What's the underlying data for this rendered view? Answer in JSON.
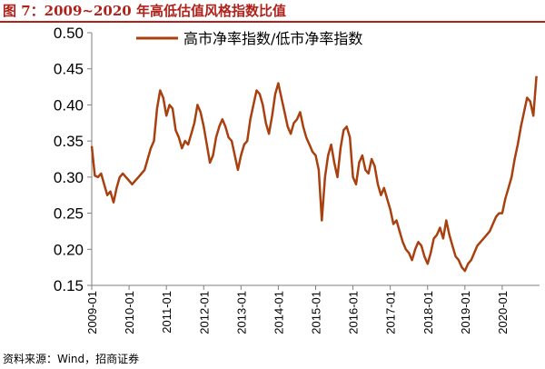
{
  "figure": {
    "title": "图 7：2009~2020 年高低估值风格指数比值",
    "source": "资料来源：Wind，招商证券"
  },
  "colors": {
    "series": "#a8400f",
    "title": "#b0211a",
    "axis": "#7f7f7f",
    "text": "#000000"
  },
  "chart_data": {
    "type": "line",
    "title": "图 7：2009~2020 年高低估值风格指数比值",
    "xlabel": "",
    "ylabel": "",
    "ylim": [
      0.15,
      0.5
    ],
    "yticks": [
      "0.15",
      "0.20",
      "0.25",
      "0.30",
      "0.35",
      "0.40",
      "0.45",
      "0.50"
    ],
    "xlim": [
      "2009-01",
      "2020-12"
    ],
    "xticks": [
      "2009-01",
      "2010-01",
      "2011-01",
      "2012-01",
      "2013-01",
      "2014-01",
      "2015-01",
      "2016-01",
      "2017-01",
      "2018-01",
      "2019-01",
      "2020-01"
    ],
    "grid": false,
    "legend": "top-center",
    "series": [
      {
        "name": "高市净率指数/低市净率指数",
        "x": [
          "2009-01",
          "2009-02",
          "2009-03",
          "2009-04",
          "2009-05",
          "2009-06",
          "2009-07",
          "2009-08",
          "2009-09",
          "2009-10",
          "2009-11",
          "2009-12",
          "2010-01",
          "2010-02",
          "2010-03",
          "2010-04",
          "2010-05",
          "2010-06",
          "2010-07",
          "2010-08",
          "2010-09",
          "2010-10",
          "2010-11",
          "2010-12",
          "2011-01",
          "2011-02",
          "2011-03",
          "2011-04",
          "2011-05",
          "2011-06",
          "2011-07",
          "2011-08",
          "2011-09",
          "2011-10",
          "2011-11",
          "2011-12",
          "2012-01",
          "2012-02",
          "2012-03",
          "2012-04",
          "2012-05",
          "2012-06",
          "2012-07",
          "2012-08",
          "2012-09",
          "2012-10",
          "2012-11",
          "2012-12",
          "2013-01",
          "2013-02",
          "2013-03",
          "2013-04",
          "2013-05",
          "2013-06",
          "2013-07",
          "2013-08",
          "2013-09",
          "2013-10",
          "2013-11",
          "2013-12",
          "2014-01",
          "2014-02",
          "2014-03",
          "2014-04",
          "2014-05",
          "2014-06",
          "2014-07",
          "2014-08",
          "2014-09",
          "2014-10",
          "2014-11",
          "2014-12",
          "2015-01",
          "2015-02",
          "2015-03",
          "2015-04",
          "2015-05",
          "2015-06",
          "2015-07",
          "2015-08",
          "2015-09",
          "2015-10",
          "2015-11",
          "2015-12",
          "2016-01",
          "2016-02",
          "2016-03",
          "2016-04",
          "2016-05",
          "2016-06",
          "2016-07",
          "2016-08",
          "2016-09",
          "2016-10",
          "2016-11",
          "2016-12",
          "2017-01",
          "2017-02",
          "2017-03",
          "2017-04",
          "2017-05",
          "2017-06",
          "2017-07",
          "2017-08",
          "2017-09",
          "2017-10",
          "2017-11",
          "2017-12",
          "2018-01",
          "2018-02",
          "2018-03",
          "2018-04",
          "2018-05",
          "2018-06",
          "2018-07",
          "2018-08",
          "2018-09",
          "2018-10",
          "2018-11",
          "2018-12",
          "2019-01",
          "2019-02",
          "2019-03",
          "2019-04",
          "2019-05",
          "2019-06",
          "2019-07",
          "2019-08",
          "2019-09",
          "2019-10",
          "2019-11",
          "2019-12",
          "2020-01",
          "2020-02",
          "2020-03",
          "2020-04",
          "2020-05",
          "2020-06",
          "2020-07",
          "2020-08",
          "2020-09",
          "2020-10",
          "2020-11",
          "2020-12"
        ],
        "values": [
          0.343,
          0.302,
          0.3,
          0.305,
          0.29,
          0.275,
          0.28,
          0.265,
          0.285,
          0.3,
          0.305,
          0.3,
          0.295,
          0.29,
          0.295,
          0.3,
          0.305,
          0.31,
          0.325,
          0.34,
          0.35,
          0.395,
          0.42,
          0.41,
          0.385,
          0.4,
          0.395,
          0.365,
          0.355,
          0.34,
          0.35,
          0.345,
          0.36,
          0.375,
          0.4,
          0.39,
          0.37,
          0.345,
          0.32,
          0.33,
          0.355,
          0.37,
          0.38,
          0.37,
          0.355,
          0.35,
          0.33,
          0.31,
          0.33,
          0.345,
          0.35,
          0.38,
          0.4,
          0.42,
          0.415,
          0.4,
          0.375,
          0.36,
          0.385,
          0.415,
          0.43,
          0.41,
          0.39,
          0.37,
          0.36,
          0.375,
          0.38,
          0.39,
          0.37,
          0.355,
          0.345,
          0.335,
          0.33,
          0.31,
          0.24,
          0.3,
          0.33,
          0.345,
          0.32,
          0.3,
          0.34,
          0.365,
          0.37,
          0.355,
          0.3,
          0.29,
          0.32,
          0.33,
          0.31,
          0.305,
          0.325,
          0.315,
          0.29,
          0.275,
          0.285,
          0.27,
          0.255,
          0.235,
          0.24,
          0.225,
          0.21,
          0.2,
          0.195,
          0.185,
          0.2,
          0.21,
          0.205,
          0.19,
          0.18,
          0.195,
          0.215,
          0.22,
          0.23,
          0.215,
          0.24,
          0.22,
          0.205,
          0.19,
          0.185,
          0.175,
          0.17,
          0.18,
          0.185,
          0.195,
          0.205,
          0.21,
          0.215,
          0.22,
          0.225,
          0.235,
          0.245,
          0.25,
          0.25,
          0.27,
          0.285,
          0.3,
          0.325,
          0.345,
          0.37,
          0.39,
          0.41,
          0.405,
          0.385,
          0.44
        ]
      }
    ]
  }
}
